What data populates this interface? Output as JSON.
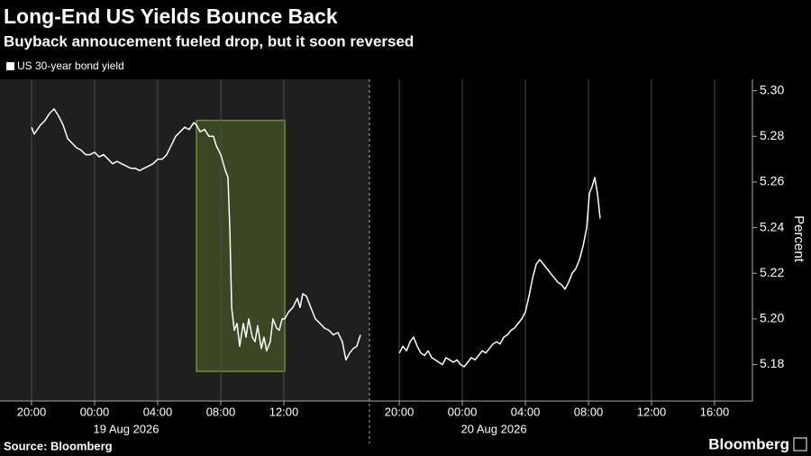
{
  "chart_data": {
    "type": "line",
    "title": "Long-End US Yields Bounce Back",
    "subtitle": "Buyback annoucement fueled drop, but it soon reversed",
    "series": [
      {
        "name": "US 30-year bond yield",
        "color": "#ffffff"
      }
    ],
    "ylabel": "Percent",
    "ylim": [
      5.164,
      5.305
    ],
    "yticks": [
      5.18,
      {
        "value": 5.2,
        "label": "5.20"
      },
      5.22,
      5.24,
      5.26,
      5.28,
      {
        "value": 5.3,
        "label": "5.30"
      }
    ],
    "grid": true,
    "source": "Source: Bloomberg",
    "brand": "Bloomberg",
    "panels": [
      {
        "date_label": "19 Aug 2026",
        "background": "#1f1f1f",
        "xlim": [
          -6,
          17.43
        ],
        "xticks": [
          {
            "value": -4,
            "label": "20:00"
          },
          {
            "value": 0,
            "label": "00:00"
          },
          {
            "value": 4,
            "label": "04:00"
          },
          {
            "value": 8,
            "label": "08:00"
          },
          {
            "value": 12,
            "label": "12:00"
          }
        ],
        "highlight": {
          "color": "#6f8f2f",
          "x": [
            6.46,
            12.06
          ],
          "y": [
            5.177,
            5.287
          ]
        },
        "x": [
          -4.0,
          -3.83,
          -3.43,
          -3.14,
          -2.86,
          -2.57,
          -2.29,
          -2.0,
          -1.71,
          -1.43,
          -1.14,
          -0.86,
          -0.57,
          -0.29,
          0.0,
          0.29,
          0.57,
          0.86,
          1.14,
          1.43,
          1.71,
          2.0,
          2.29,
          2.57,
          2.86,
          3.14,
          3.43,
          3.71,
          4.0,
          4.29,
          4.57,
          4.86,
          5.14,
          5.43,
          5.71,
          6.0,
          6.29,
          6.46,
          6.69,
          6.97,
          7.26,
          7.54,
          7.71,
          8.0,
          8.29,
          8.46,
          8.57,
          8.69,
          8.86,
          9.03,
          9.2,
          9.43,
          9.6,
          9.77,
          10.0,
          10.17,
          10.34,
          10.57,
          10.74,
          10.91,
          11.14,
          11.31,
          11.54,
          11.71,
          11.89,
          12.06,
          12.29,
          12.57,
          12.86,
          13.03,
          13.2,
          13.43,
          13.71,
          14.0,
          14.29,
          14.57,
          14.86,
          15.14,
          15.43,
          15.71,
          15.94,
          16.17,
          16.4,
          16.63,
          16.86
        ],
        "values": [
          5.284,
          5.281,
          5.285,
          5.287,
          5.29,
          5.292,
          5.289,
          5.285,
          5.279,
          5.277,
          5.275,
          5.274,
          5.272,
          5.272,
          5.273,
          5.271,
          5.272,
          5.27,
          5.268,
          5.269,
          5.268,
          5.267,
          5.266,
          5.266,
          5.265,
          5.266,
          5.267,
          5.268,
          5.27,
          5.27,
          5.272,
          5.276,
          5.28,
          5.282,
          5.284,
          5.283,
          5.286,
          5.285,
          5.282,
          5.283,
          5.28,
          5.28,
          5.276,
          5.272,
          5.265,
          5.262,
          5.24,
          5.205,
          5.195,
          5.198,
          5.188,
          5.198,
          5.192,
          5.2,
          5.192,
          5.19,
          5.197,
          5.187,
          5.192,
          5.186,
          5.19,
          5.2,
          5.196,
          5.195,
          5.2,
          5.2,
          5.203,
          5.205,
          5.209,
          5.205,
          5.211,
          5.21,
          5.205,
          5.2,
          5.198,
          5.196,
          5.195,
          5.193,
          5.194,
          5.19,
          5.182,
          5.185,
          5.187,
          5.188,
          5.193
        ]
      },
      {
        "date_label": "20 Aug 2026",
        "background": "#000000",
        "xlim": [
          -5.89,
          18.4
        ],
        "xticks": [
          {
            "value": -4,
            "label": "20:00"
          },
          {
            "value": 0,
            "label": "00:00"
          },
          {
            "value": 4,
            "label": "04:00"
          },
          {
            "value": 8,
            "label": "08:00"
          },
          {
            "value": 12,
            "label": "12:00"
          },
          {
            "value": 16,
            "label": "16:00"
          }
        ],
        "x": [
          -4.0,
          -3.77,
          -3.54,
          -3.31,
          -3.09,
          -2.86,
          -2.63,
          -2.4,
          -2.17,
          -1.94,
          -1.71,
          -1.49,
          -1.26,
          -1.03,
          -0.8,
          -0.57,
          -0.34,
          -0.11,
          0.11,
          0.34,
          0.57,
          0.8,
          1.03,
          1.26,
          1.49,
          1.71,
          1.94,
          2.17,
          2.4,
          2.63,
          2.86,
          3.09,
          3.31,
          3.54,
          3.77,
          4.0,
          4.23,
          4.46,
          4.69,
          4.91,
          5.14,
          5.37,
          5.6,
          5.83,
          6.06,
          6.29,
          6.51,
          6.74,
          6.97,
          7.2,
          7.43,
          7.66,
          7.89,
          8.06,
          8.23,
          8.4,
          8.57,
          8.74
        ],
        "values": [
          5.185,
          5.188,
          5.186,
          5.19,
          5.192,
          5.188,
          5.185,
          5.184,
          5.186,
          5.183,
          5.182,
          5.181,
          5.18,
          5.183,
          5.182,
          5.181,
          5.182,
          5.18,
          5.179,
          5.181,
          5.183,
          5.182,
          5.184,
          5.186,
          5.185,
          5.187,
          5.189,
          5.19,
          5.189,
          5.192,
          5.193,
          5.195,
          5.196,
          5.198,
          5.2,
          5.203,
          5.21,
          5.218,
          5.224,
          5.226,
          5.224,
          5.222,
          5.22,
          5.218,
          5.216,
          5.215,
          5.213,
          5.216,
          5.22,
          5.222,
          5.226,
          5.232,
          5.24,
          5.255,
          5.258,
          5.262,
          5.255,
          5.244
        ]
      }
    ]
  }
}
